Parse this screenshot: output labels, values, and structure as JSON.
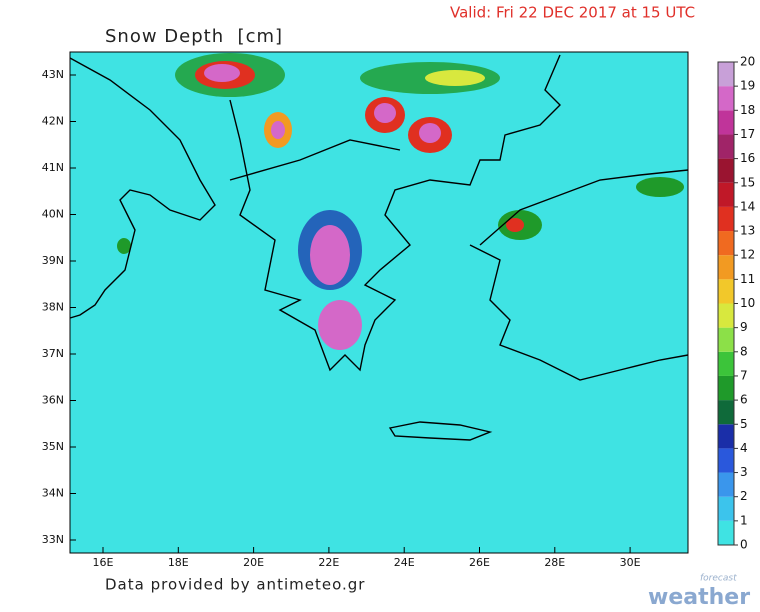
{
  "header": {
    "title": "Snow Depth  [cm]",
    "valid": "Valid: Fri 22 DEC 2017 at 15 UTC"
  },
  "map": {
    "lat_labels": [
      "43N",
      "42N",
      "41N",
      "40N",
      "39N",
      "38N",
      "37N",
      "36N",
      "35N",
      "34N",
      "33N"
    ],
    "lon_labels": [
      "16E",
      "18E",
      "20E",
      "22E",
      "24E",
      "26E",
      "28E",
      "30E"
    ]
  },
  "colorbar": {
    "labels": [
      0,
      1,
      2,
      3,
      4,
      5,
      6,
      7,
      8,
      9,
      10,
      11,
      12,
      13,
      14,
      15,
      16,
      17,
      18,
      19,
      20
    ],
    "colors": [
      "#3fe3e3",
      "#3cc4ec",
      "#3a96ec",
      "#2a58dc",
      "#1a2ea8",
      "#0f6a3a",
      "#1f9a2a",
      "#3cc43a",
      "#8ce048",
      "#d8e83e",
      "#f2c82a",
      "#f29a22",
      "#f06a20",
      "#e03020",
      "#c01828",
      "#9a1430",
      "#a02468",
      "#c0349a",
      "#d468c8",
      "#c8a0d8"
    ]
  },
  "footer": "Data provided by antimeteo.gr",
  "logo": {
    "top": "forecast",
    "bottom": "weather"
  }
}
